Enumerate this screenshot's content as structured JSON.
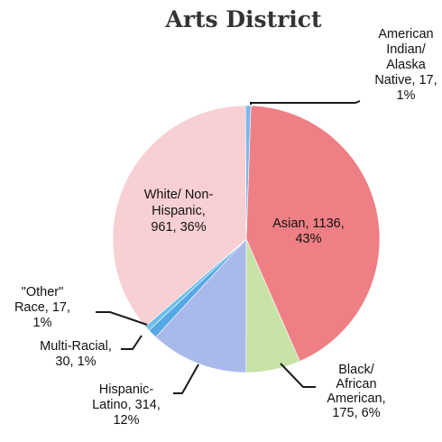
{
  "chart_data": {
    "type": "pie",
    "title": "Arts District",
    "start_angle_deg": 2,
    "direction": "clockwise",
    "slices": [
      {
        "label": "Asian",
        "value": 1136,
        "percent": "43%",
        "color": "#ee7f84",
        "label_lines": [
          "Asian, 1136,",
          "43%"
        ]
      },
      {
        "label": "Black/ African American",
        "value": 175,
        "percent": "6%",
        "color": "#c9e2a7",
        "label_lines": [
          "Black/",
          "African",
          "American,",
          "175, 6%"
        ]
      },
      {
        "label": "Hispanic-Latino",
        "value": 314,
        "percent": "12%",
        "color": "#a9b9ea",
        "label_lines": [
          "Hispanic-",
          "Latino, 314,",
          "12%"
        ]
      },
      {
        "label": "Multi-Racial",
        "value": 30,
        "percent": "1%",
        "color": "#55a8e4",
        "label_lines": [
          "Multi-Racial,",
          "30, 1%"
        ]
      },
      {
        "label": "\"Other\" Race",
        "value": 17,
        "percent": "1%",
        "color": "#6fc0e8",
        "label_lines": [
          "\"Other\"",
          "Race, 17,",
          "1%"
        ]
      },
      {
        "label": "White/ Non-Hispanic",
        "value": 961,
        "percent": "36%",
        "color": "#f8cfd3",
        "label_lines": [
          "White/ Non-",
          "Hispanic,",
          "961, 36%"
        ]
      },
      {
        "label": "American Indian/ Alaska Native",
        "value": 17,
        "percent": "1%",
        "color": "#7fb8ea",
        "label_lines": [
          "American",
          "Indian/",
          "Alaska",
          "Native, 17,",
          "1%"
        ]
      }
    ]
  }
}
